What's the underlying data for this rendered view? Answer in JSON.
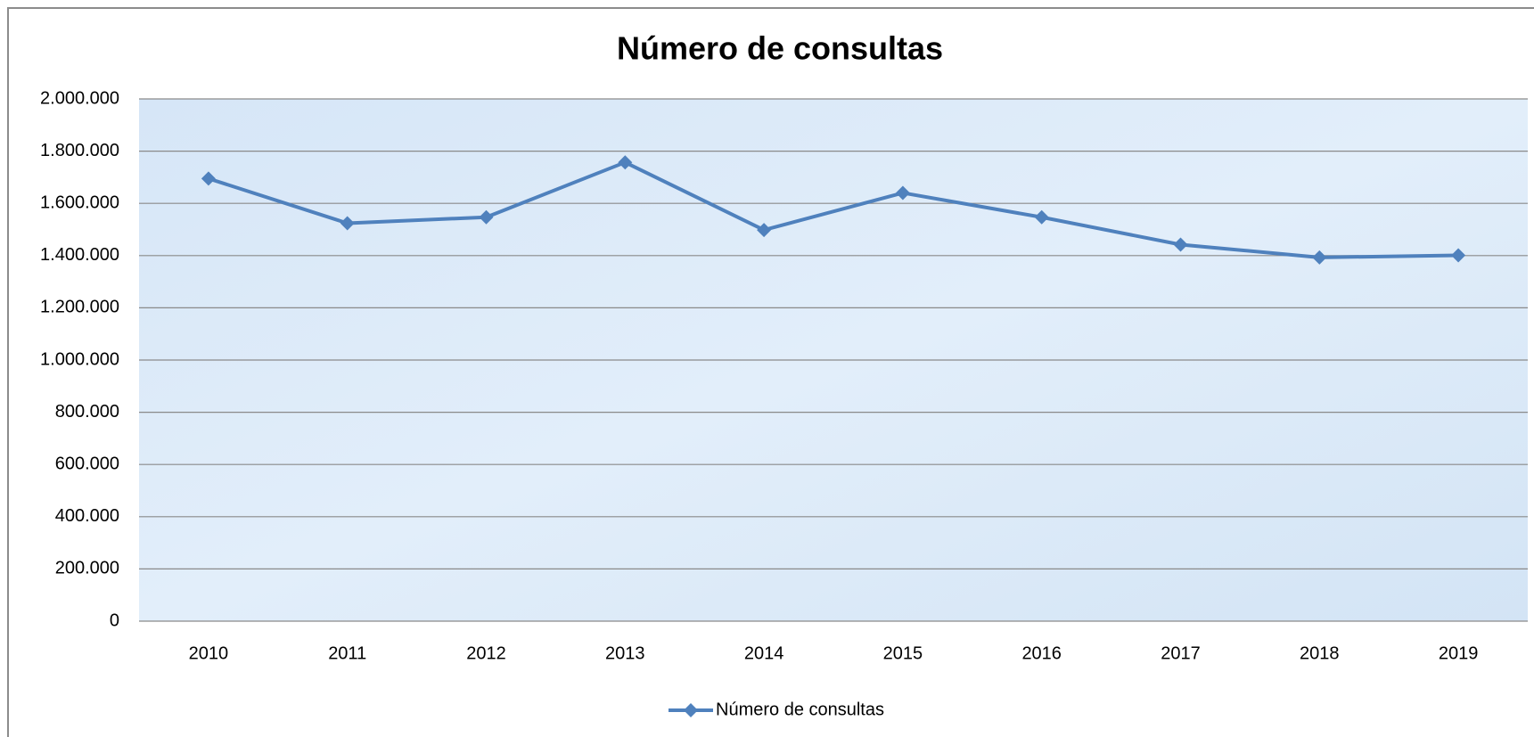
{
  "chart_data": {
    "type": "line",
    "title": "Número de consultas",
    "categories": [
      "2010",
      "2011",
      "2012",
      "2013",
      "2014",
      "2015",
      "2016",
      "2017",
      "2018",
      "2019"
    ],
    "series": [
      {
        "name": "Número de consultas",
        "color": "#4f81bd",
        "values": [
          1695000,
          1524000,
          1547000,
          1757000,
          1498000,
          1640000,
          1547000,
          1442000,
          1393000,
          1401000
        ]
      }
    ],
    "ylim": [
      0,
      2000000
    ],
    "yticks": [
      0,
      {
        "value": 200000,
        "label": "200.000"
      },
      {
        "value": 400000,
        "label": "400.000"
      },
      {
        "value": 600000,
        "label": "600.000"
      },
      {
        "value": 800000,
        "label": "800.000"
      },
      {
        "value": 1000000,
        "label": "1.000.000"
      },
      {
        "value": 1200000,
        "label": "1.200.000"
      },
      {
        "value": 1400000,
        "label": "1.400.000"
      },
      {
        "value": 1600000,
        "label": "1.600.000"
      },
      {
        "value": 1800000,
        "label": "1.800.000"
      },
      {
        "value": 2000000,
        "label": "2.000.000"
      }
    ],
    "grid": true,
    "legend": "bottom"
  }
}
